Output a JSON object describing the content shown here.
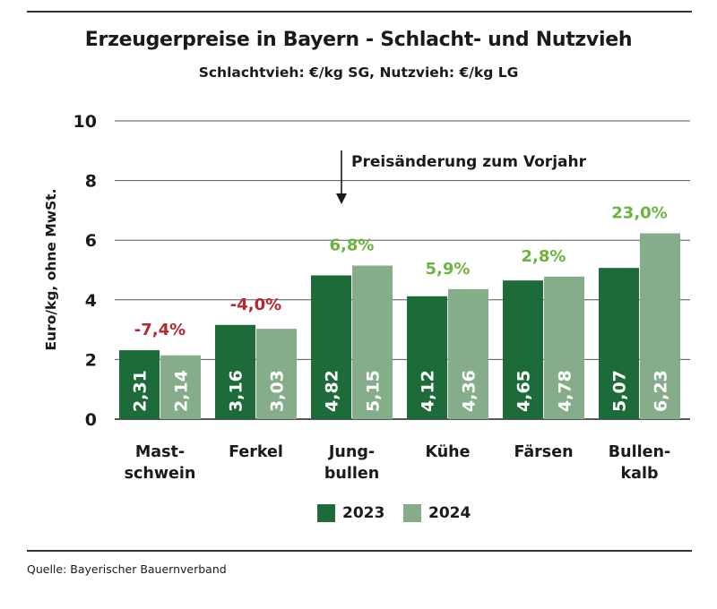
{
  "title": "Erzeugerpreise in Bayern - Schlacht- und Nutzvieh",
  "subtitle": "Schlachtvieh: €/kg SG, Nutzvieh: €/kg LG",
  "source": "Quelle: Bayerischer Bauernverband",
  "annotation": "Preisänderung zum Vorjahr",
  "colors": {
    "y2023": "#1e6b3a",
    "y2024": "#86ad8a",
    "negative": "#b5282e",
    "positive": "#6db33f"
  },
  "chart_data": {
    "type": "bar",
    "ylabel": "Euro/kg, ohne MwSt.",
    "ylim": [
      0,
      10
    ],
    "yticks": [
      "0",
      "2",
      "4",
      "6",
      "8",
      "10"
    ],
    "grid": true,
    "legend_position": "bottom",
    "categories": [
      [
        "Mast-",
        "schwein"
      ],
      [
        "Ferkel"
      ],
      [
        "Jung-",
        "bullen"
      ],
      [
        "Kühe"
      ],
      [
        "Färsen"
      ],
      [
        "Bullen-",
        "kalb"
      ]
    ],
    "series": [
      {
        "name": "2023",
        "values": [
          2.31,
          3.16,
          4.82,
          4.12,
          4.65,
          5.07
        ],
        "labels": [
          "2,31",
          "3,16",
          "4,82",
          "4,12",
          "4,65",
          "5,07"
        ]
      },
      {
        "name": "2024",
        "values": [
          2.14,
          3.03,
          5.15,
          4.36,
          4.78,
          6.23
        ],
        "labels": [
          "2,14",
          "3,03",
          "5,15",
          "4,36",
          "4,78",
          "6,23"
        ]
      }
    ],
    "changes": [
      "-7,4%",
      "-4,0%",
      "6,8%",
      "5,9%",
      "2,8%",
      "23,0%"
    ],
    "change_signs": [
      "negative",
      "negative",
      "positive",
      "positive",
      "positive",
      "positive"
    ]
  }
}
